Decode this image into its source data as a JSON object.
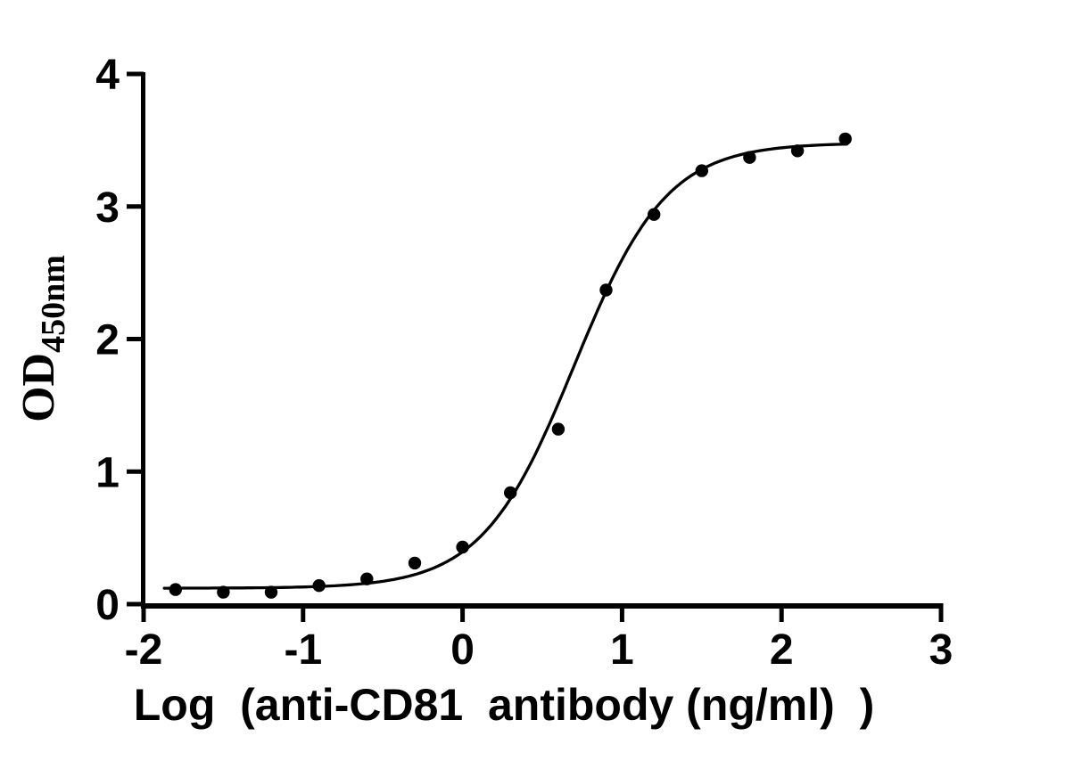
{
  "figure": {
    "background": "#ffffff",
    "ink_color": "#000000"
  },
  "chart_data": {
    "type": "scatter",
    "title": "",
    "xlabel": "Log （anti-CD81  antibody（ng/ml） ）",
    "ylabel_main": "OD",
    "ylabel_sub": "450nm",
    "xlim": [
      -2,
      3
    ],
    "ylim": [
      0,
      4
    ],
    "xticks": [
      "-2",
      "-1",
      "0",
      "1",
      "2",
      "3"
    ],
    "yticks": [
      "0",
      "1",
      "2",
      "3",
      "4"
    ],
    "grid": false,
    "legend_position": "none",
    "marker_color": "#000000",
    "curve_color": "#000000",
    "points": {
      "x": [
        -1.8,
        -1.5,
        -1.2,
        -0.9,
        -0.6,
        -0.3,
        0.0,
        0.3,
        0.6,
        0.9,
        1.2,
        1.5,
        1.8,
        2.1,
        2.4
      ],
      "y": [
        0.11,
        0.09,
        0.09,
        0.14,
        0.19,
        0.31,
        0.43,
        0.84,
        1.32,
        2.37,
        2.94,
        3.27,
        3.37,
        3.42,
        3.51
      ]
    },
    "fit_curve": {
      "model": "4PL sigmoid",
      "bottom": 0.12,
      "top": 3.48,
      "logEC50": 0.7,
      "hillslope": 1.5,
      "x_start": -1.87,
      "x_end": 2.41
    }
  }
}
